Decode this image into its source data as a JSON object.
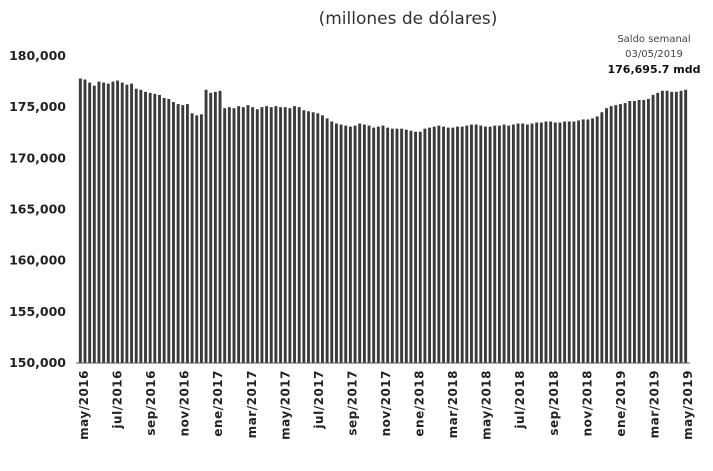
{
  "chart_data": {
    "type": "bar",
    "subtitle": "(millones de dólares)",
    "ylim": [
      150000,
      180000
    ],
    "yticks": [
      "150,000",
      "155,000",
      "160,000",
      "165,000",
      "170,000",
      "175,000",
      "180,000"
    ],
    "ytick_values": [
      150000,
      155000,
      160000,
      165000,
      170000,
      175000,
      180000
    ],
    "xtick_labels": [
      "may/2016",
      "jul/2016",
      "sep/2016",
      "nov/2016",
      "ene/2017",
      "mar/2017",
      "may/2017",
      "jul/2017",
      "sep/2017",
      "nov/2017",
      "ene/2018",
      "mar/2018",
      "may/2018",
      "jul/2018",
      "sep/2018",
      "nov/2018",
      "ene/2019",
      "mar/2019",
      "may/2019"
    ],
    "grid": false,
    "bar_color": "#3a3a3a",
    "annotation": {
      "label": "Saldo semanal",
      "date": "03/05/2019",
      "value": "176,695.7 mdd"
    },
    "series": [
      {
        "values": [
          177800,
          177700,
          177400,
          177100,
          177500,
          177400,
          177300,
          177500,
          177600,
          177400,
          177200,
          177300,
          176800,
          176700,
          176500,
          176400,
          176300,
          176200,
          175900,
          175800,
          175500,
          175300,
          175200,
          175300,
          174400,
          174200,
          174300,
          176700,
          176400,
          176500,
          176600,
          174900,
          175000,
          174900,
          175100,
          175000,
          175200,
          175000,
          174800,
          175000,
          175100,
          175000,
          175100,
          175000,
          175000,
          174900,
          175100,
          175000,
          174700,
          174600,
          174500,
          174400,
          174200,
          173900,
          173600,
          173400,
          173300,
          173200,
          173100,
          173200,
          173400,
          173300,
          173200,
          173000,
          173100,
          173200,
          173000,
          172900,
          172900,
          172900,
          172800,
          172700,
          172600,
          172600,
          172900,
          173000,
          173100,
          173200,
          173100,
          173000,
          173000,
          173100,
          173100,
          173200,
          173300,
          173300,
          173200,
          173100,
          173100,
          173200,
          173200,
          173300,
          173200,
          173300,
          173400,
          173400,
          173300,
          173400,
          173500,
          173500,
          173600,
          173600,
          173500,
          173500,
          173600,
          173600,
          173600,
          173700,
          173800,
          173800,
          173900,
          174100,
          174500,
          174900,
          175100,
          175200,
          175300,
          175400,
          175600,
          175600,
          175700,
          175700,
          175800,
          176200,
          176400,
          176600,
          176600,
          176500,
          176500,
          176600,
          176700
        ]
      }
    ]
  }
}
